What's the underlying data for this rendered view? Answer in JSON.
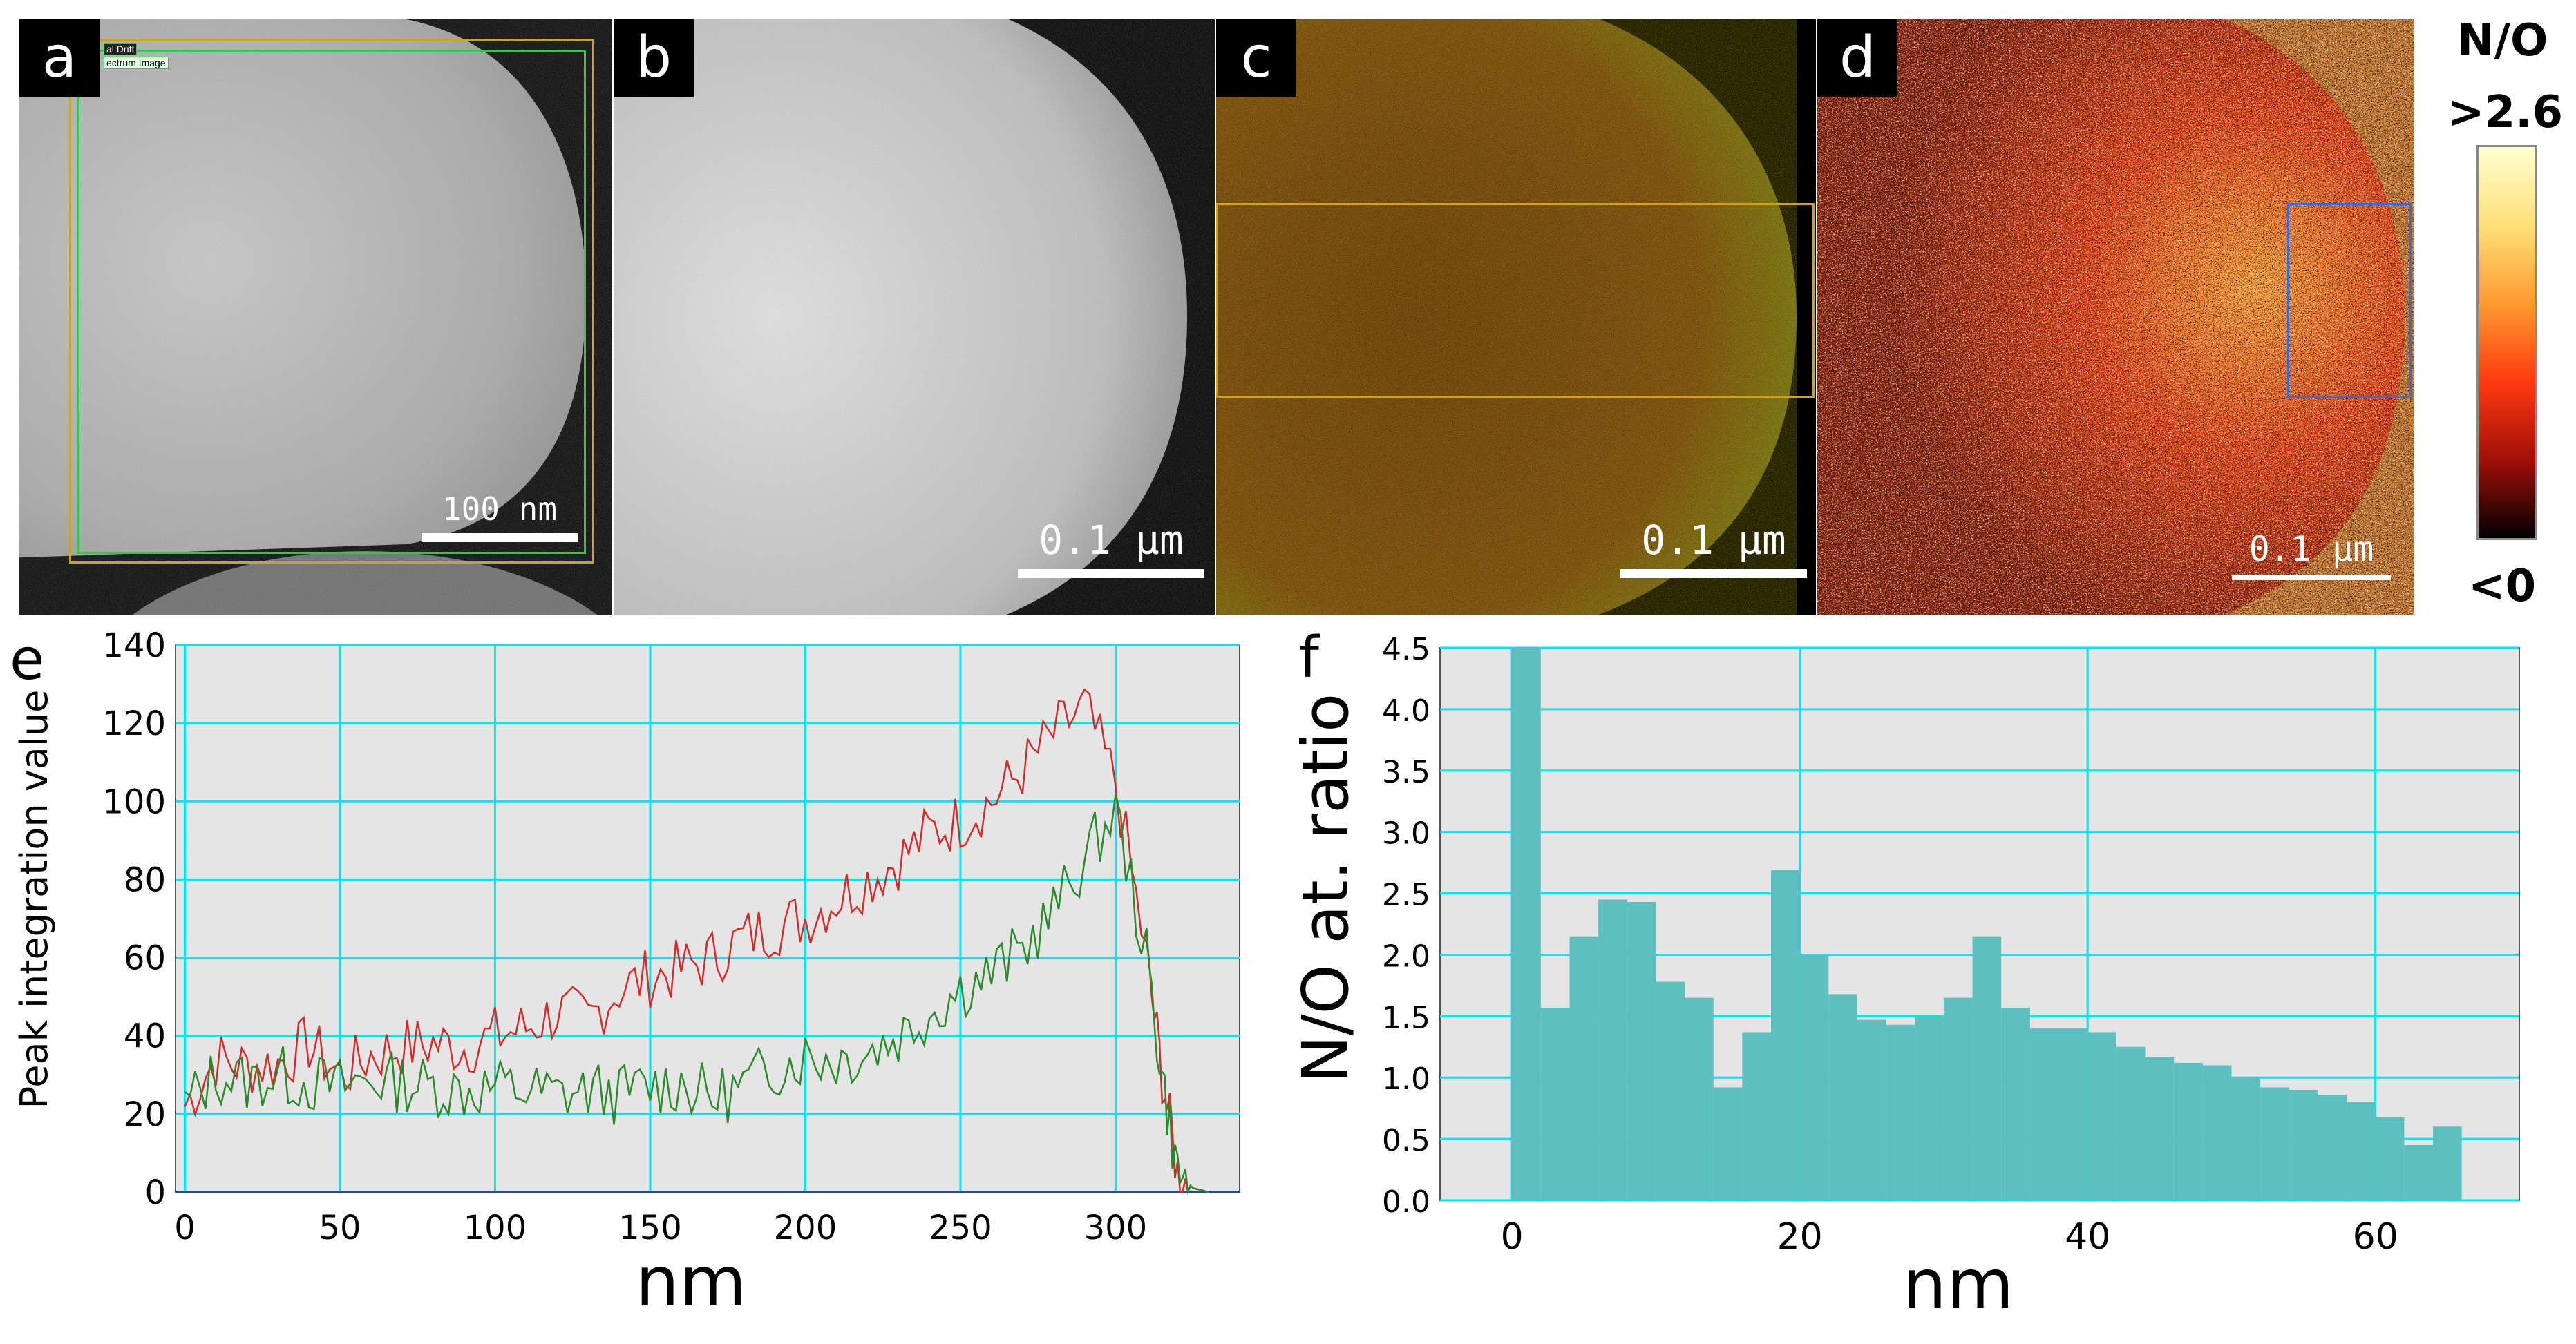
{
  "figure": {
    "panel_letters": [
      "a",
      "b",
      "c",
      "d",
      "e",
      "f"
    ],
    "panel_a": {
      "overlay_labels": [
        "al Drift",
        "ectrum Image"
      ],
      "scale_bar": "100 nm"
    },
    "panel_b": {
      "scale_bar": "0.1 µm"
    },
    "panel_c": {
      "scale_bar": "0.1 µm"
    },
    "panel_d": {
      "scale_bar": "0.1 µm"
    },
    "colorbar": {
      "title": "N/O",
      "max_label": ">2.6",
      "min_label": "<0"
    },
    "colors": {
      "red_series": "#d42a2a",
      "green_series": "#2a8a2a",
      "bar_fill": "#5ebfbf",
      "grid": "#00e5ee",
      "plot_bg": "#e5e5e5"
    }
  },
  "chart_data": [
    {
      "type": "line",
      "panel": "e",
      "xlabel": "nm",
      "ylabel": "Peak integration value",
      "xlim": [
        -3,
        340
      ],
      "ylim": [
        0,
        140
      ],
      "xticks": [
        0,
        50,
        100,
        150,
        200,
        250,
        300
      ],
      "yticks": [
        0,
        20,
        40,
        60,
        80,
        100,
        120,
        140
      ],
      "series": [
        {
          "name": "red",
          "color": "#d42a2a",
          "x": [
            0,
            10,
            20,
            30,
            40,
            50,
            60,
            70,
            80,
            90,
            100,
            110,
            120,
            130,
            140,
            150,
            160,
            170,
            180,
            190,
            200,
            210,
            220,
            230,
            240,
            250,
            260,
            270,
            280,
            290,
            300,
            310,
            315,
            320,
            325,
            330
          ],
          "y": [
            22,
            34,
            32,
            33,
            38,
            30,
            35,
            37,
            38,
            37,
            40,
            42,
            46,
            44,
            52,
            55,
            57,
            60,
            65,
            68,
            70,
            75,
            80,
            85,
            92,
            95,
            100,
            108,
            117,
            124,
            105,
            60,
            30,
            5,
            1,
            0
          ]
        },
        {
          "name": "green",
          "color": "#2a8a2a",
          "x": [
            0,
            10,
            20,
            30,
            40,
            50,
            60,
            70,
            80,
            90,
            100,
            110,
            120,
            130,
            140,
            150,
            160,
            170,
            180,
            190,
            200,
            210,
            220,
            230,
            240,
            250,
            260,
            270,
            280,
            290,
            300,
            310,
            315,
            320,
            325,
            330
          ],
          "y": [
            22,
            30,
            28,
            30,
            28,
            27,
            29,
            28,
            27,
            26,
            27,
            26,
            25,
            26,
            25,
            27,
            28,
            24,
            27,
            32,
            35,
            34,
            36,
            40,
            46,
            52,
            56,
            62,
            72,
            85,
            98,
            60,
            30,
            5,
            1,
            0
          ]
        }
      ]
    },
    {
      "type": "bar",
      "panel": "f",
      "xlabel": "nm",
      "ylabel": "N/O at. ratio",
      "xlim": [
        -5,
        70
      ],
      "ylim": [
        0,
        4.5
      ],
      "xticks": [
        0,
        20,
        40,
        60
      ],
      "yticks": [
        0.0,
        0.5,
        1.0,
        1.5,
        2.0,
        2.5,
        3.0,
        3.5,
        4.0,
        4.5
      ],
      "bin_width": 2,
      "bin_starts": [
        0,
        2,
        4,
        6,
        8,
        10,
        12,
        14,
        16,
        18,
        20,
        22,
        24,
        26,
        28,
        30,
        32,
        34,
        36,
        38,
        40,
        42,
        44,
        46,
        48,
        50,
        52,
        54,
        56,
        58,
        60,
        62,
        64
      ],
      "values": [
        4.5,
        1.57,
        2.15,
        2.45,
        2.43,
        1.78,
        1.65,
        0.92,
        1.37,
        2.69,
        2.0,
        1.68,
        1.47,
        1.43,
        1.5,
        1.65,
        2.15,
        1.57,
        1.4,
        1.4,
        1.37,
        1.25,
        1.17,
        1.12,
        1.1,
        1.0,
        0.92,
        0.9,
        0.86,
        0.8,
        0.68,
        0.45,
        0.6
      ]
    }
  ]
}
